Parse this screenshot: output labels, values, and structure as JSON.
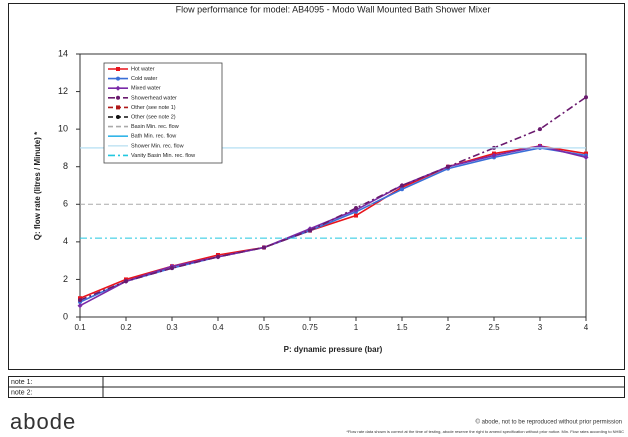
{
  "chart_data": {
    "type": "line",
    "title": "Flow performance for model: AB4095 - Modo Wall Mounted Bath Shower Mixer",
    "x_label": "P: dynamic pressure (bar)",
    "y_label": "Q: flow rate (litres / Minute) *",
    "categories": [
      "0.1",
      "0.2",
      "0.3",
      "0.4",
      "0.5",
      "0.75",
      "1",
      "1.5",
      "2",
      "2.5",
      "3",
      "4"
    ],
    "ylim": [
      0,
      14
    ],
    "yticks": [
      0,
      2,
      4,
      6,
      8,
      10,
      12,
      14
    ],
    "series": [
      {
        "name": "Hot water",
        "color": "#e8141c",
        "style": "solid",
        "marker": "square",
        "values": [
          1.0,
          2.0,
          2.7,
          3.3,
          3.7,
          4.6,
          5.4,
          6.9,
          8.0,
          8.7,
          9.1,
          8.7
        ]
      },
      {
        "name": "Cold water",
        "color": "#3a6fd8",
        "style": "solid",
        "marker": "circle",
        "values": [
          0.8,
          1.9,
          2.6,
          3.2,
          3.7,
          4.6,
          5.6,
          6.8,
          7.9,
          8.5,
          9.0,
          8.6
        ]
      },
      {
        "name": "Mixed water",
        "color": "#7a2aa8",
        "style": "solid",
        "marker": "diamond",
        "values": [
          0.6,
          1.9,
          2.7,
          3.2,
          3.7,
          4.7,
          5.7,
          7.0,
          8.0,
          8.6,
          9.1,
          8.5
        ]
      },
      {
        "name": "Showerhead water",
        "color": "#6a1a6e",
        "style": "dashdot",
        "marker": "circle",
        "values": [
          0.9,
          1.9,
          2.6,
          3.2,
          3.7,
          4.6,
          5.8,
          7.0,
          8.0,
          9.0,
          10.0,
          11.7
        ]
      },
      {
        "name": "Other (see note 1)",
        "color": "#b01818",
        "style": "dashed",
        "marker": "square",
        "values": [
          null,
          null,
          null,
          null,
          null,
          null,
          null,
          null,
          null,
          null,
          null,
          null
        ]
      },
      {
        "name": "Other (see note 2)",
        "color": "#111111",
        "style": "dashed",
        "marker": "circle",
        "values": [
          null,
          null,
          null,
          null,
          null,
          null,
          null,
          null,
          null,
          null,
          null,
          null
        ]
      },
      {
        "name": "Basin Min. rec. flow",
        "color": "#aaaaaa",
        "style": "dashed",
        "marker": "none",
        "values": [
          6,
          6,
          6,
          6,
          6,
          6,
          6,
          6,
          6,
          6,
          6,
          6
        ]
      },
      {
        "name": "Bath Min. rec. flow",
        "color": "#33b5e8",
        "style": "solid",
        "marker": "none",
        "values": [
          9,
          9,
          9,
          9,
          9,
          9,
          9,
          9,
          9,
          9,
          9,
          9
        ]
      },
      {
        "name": "Shower Min. rec. flow",
        "color": "#c8e6f4",
        "style": "solid",
        "marker": "none",
        "values": [
          9,
          9,
          9,
          9,
          9,
          9,
          9,
          9,
          9,
          9,
          9,
          9
        ]
      },
      {
        "name": "Vanity Basin Min. rec. flow",
        "color": "#22c8e0",
        "style": "dashdot",
        "marker": "none",
        "values": [
          4.2,
          4.2,
          4.2,
          4.2,
          4.2,
          4.2,
          4.2,
          4.2,
          4.2,
          4.2,
          4.2,
          4.2
        ]
      }
    ]
  },
  "notes": [
    "note 1:",
    "note 2:"
  ],
  "logo": "abode",
  "copyright": "© abode, not to be reproduced without prior permission",
  "footnote": "*Flow rate data shown is correct at the time of testing, abode reserve the right to amend specification without prior notice. Min. Flow rates according to NHBC"
}
